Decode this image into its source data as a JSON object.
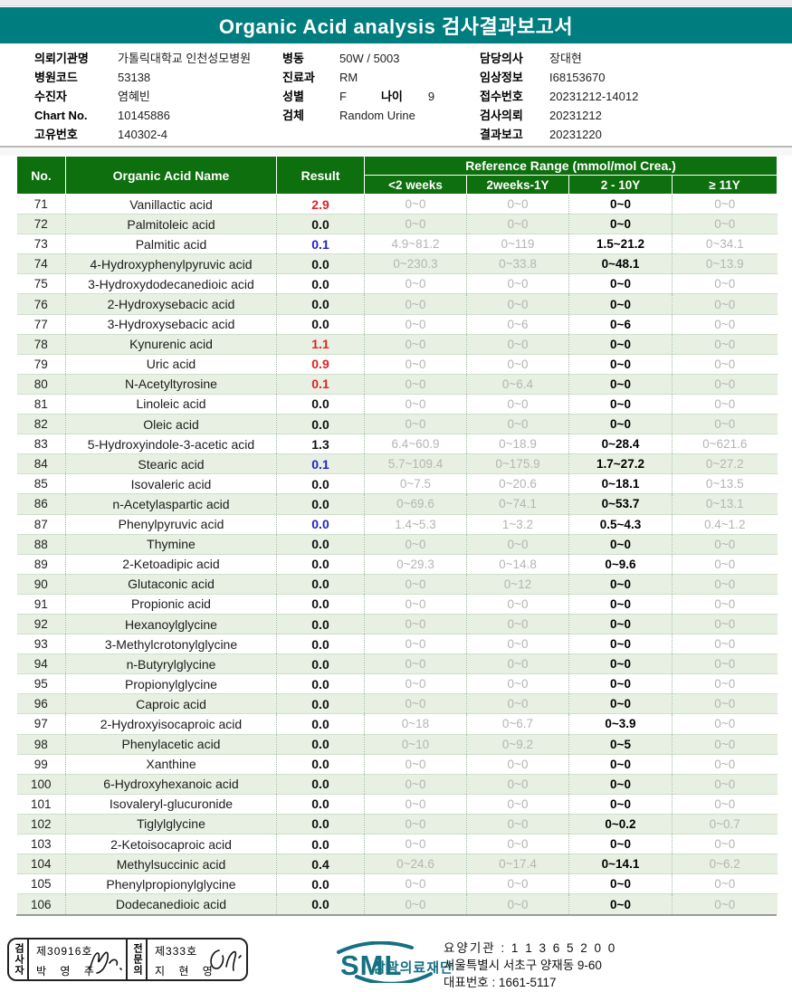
{
  "banner": {
    "title": "Organic Acid analysis 검사결과보고서"
  },
  "colors": {
    "banner_teal": "#007d7e",
    "table_header_green": "#0e6f0e",
    "row_stripe_green": "#e7f0e3",
    "result_high_red": "#e12222",
    "result_low_blue": "#2222cc",
    "reference_gray": "#b3b6b2",
    "logo_teal": "#157082"
  },
  "patient_info": {
    "col1": [
      {
        "label": "의뢰기관명",
        "value": "가톨릭대학교 인천성모병원"
      },
      {
        "label": "병원코드",
        "value": "53138"
      },
      {
        "label": "수진자",
        "value": "염혜빈"
      },
      {
        "label": "Chart No.",
        "value": "10145886"
      },
      {
        "label": "고유번호",
        "value": "140302-4"
      }
    ],
    "col2": [
      {
        "label": "병동",
        "value": "50W / 5003"
      },
      {
        "label": "진료과",
        "value": "RM"
      },
      {
        "label": "성별",
        "value": "F",
        "label2": "나이",
        "value2": "9"
      },
      {
        "label": "검체",
        "value": "Random Urine"
      }
    ],
    "col3": [
      {
        "label": "담당의사",
        "value": "장대현"
      },
      {
        "label": "임상정보",
        "value": "I68153670"
      },
      {
        "label": "접수번호",
        "value": "20231212-14012"
      },
      {
        "label": "검사의뢰",
        "value": "20231212"
      },
      {
        "label": "결과보고",
        "value": "20231220"
      }
    ]
  },
  "table": {
    "header": {
      "no": "No.",
      "name": "Organic Acid Name",
      "result": "Result",
      "reference_group": "Reference Range (mmol/mol Crea.)",
      "age_columns": [
        "<2 weeks",
        "2weeks-1Y",
        "2 - 10Y",
        "≥ 11Y"
      ]
    },
    "rows": [
      {
        "no": "71",
        "name": "Vanillactic acid",
        "result": "2.9",
        "flag": "red",
        "ranges": [
          "0~0",
          "0~0",
          "0~0",
          "0~0"
        ]
      },
      {
        "no": "72",
        "name": "Palmitoleic acid",
        "result": "0.0",
        "flag": "",
        "ranges": [
          "0~0",
          "0~0",
          "0~0",
          "0~0"
        ]
      },
      {
        "no": "73",
        "name": "Palmitic acid",
        "result": "0.1",
        "flag": "blue",
        "ranges": [
          "4.9~81.2",
          "0~119",
          "1.5~21.2",
          "0~34.1"
        ]
      },
      {
        "no": "74",
        "name": "4-Hydroxyphenylpyruvic acid",
        "result": "0.0",
        "flag": "",
        "ranges": [
          "0~230.3",
          "0~33.8",
          "0~48.1",
          "0~13.9"
        ]
      },
      {
        "no": "75",
        "name": "3-Hydroxydodecanedioic acid",
        "result": "0.0",
        "flag": "",
        "ranges": [
          "0~0",
          "0~0",
          "0~0",
          "0~0"
        ]
      },
      {
        "no": "76",
        "name": "2-Hydroxysebacic acid",
        "result": "0.0",
        "flag": "",
        "ranges": [
          "0~0",
          "0~0",
          "0~0",
          "0~0"
        ]
      },
      {
        "no": "77",
        "name": "3-Hydroxysebacic acid",
        "result": "0.0",
        "flag": "",
        "ranges": [
          "0~0",
          "0~6",
          "0~6",
          "0~0"
        ]
      },
      {
        "no": "78",
        "name": "Kynurenic acid",
        "result": "1.1",
        "flag": "red",
        "ranges": [
          "0~0",
          "0~0",
          "0~0",
          "0~0"
        ]
      },
      {
        "no": "79",
        "name": "Uric acid",
        "result": "0.9",
        "flag": "red",
        "ranges": [
          "0~0",
          "0~0",
          "0~0",
          "0~0"
        ]
      },
      {
        "no": "80",
        "name": "N-Acetyltyrosine",
        "result": "0.1",
        "flag": "red",
        "ranges": [
          "0~0",
          "0~6.4",
          "0~0",
          "0~0"
        ]
      },
      {
        "no": "81",
        "name": "Linoleic acid",
        "result": "0.0",
        "flag": "",
        "ranges": [
          "0~0",
          "0~0",
          "0~0",
          "0~0"
        ]
      },
      {
        "no": "82",
        "name": "Oleic acid",
        "result": "0.0",
        "flag": "",
        "ranges": [
          "0~0",
          "0~0",
          "0~0",
          "0~0"
        ]
      },
      {
        "no": "83",
        "name": "5-Hydroxyindole-3-acetic acid",
        "result": "1.3",
        "flag": "",
        "ranges": [
          "6.4~60.9",
          "0~18.9",
          "0~28.4",
          "0~621.6"
        ]
      },
      {
        "no": "84",
        "name": "Stearic acid",
        "result": "0.1",
        "flag": "blue",
        "ranges": [
          "5.7~109.4",
          "0~175.9",
          "1.7~27.2",
          "0~27.2"
        ]
      },
      {
        "no": "85",
        "name": "Isovaleric acid",
        "result": "0.0",
        "flag": "",
        "ranges": [
          "0~7.5",
          "0~20.6",
          "0~18.1",
          "0~13.5"
        ]
      },
      {
        "no": "86",
        "name": "n-Acetylaspartic acid",
        "result": "0.0",
        "flag": "",
        "ranges": [
          "0~69.6",
          "0~74.1",
          "0~53.7",
          "0~13.1"
        ]
      },
      {
        "no": "87",
        "name": "Phenylpyruvic acid",
        "result": "0.0",
        "flag": "blue",
        "ranges": [
          "1.4~5.3",
          "1~3.2",
          "0.5~4.3",
          "0.4~1.2"
        ]
      },
      {
        "no": "88",
        "name": "Thymine",
        "result": "0.0",
        "flag": "",
        "ranges": [
          "0~0",
          "0~0",
          "0~0",
          "0~0"
        ]
      },
      {
        "no": "89",
        "name": "2-Ketoadipic acid",
        "result": "0.0",
        "flag": "",
        "ranges": [
          "0~29.3",
          "0~14.8",
          "0~9.6",
          "0~0"
        ]
      },
      {
        "no": "90",
        "name": "Glutaconic acid",
        "result": "0.0",
        "flag": "",
        "ranges": [
          "0~0",
          "0~12",
          "0~0",
          "0~0"
        ]
      },
      {
        "no": "91",
        "name": "Propionic acid",
        "result": "0.0",
        "flag": "",
        "ranges": [
          "0~0",
          "0~0",
          "0~0",
          "0~0"
        ]
      },
      {
        "no": "92",
        "name": "Hexanoylglycine",
        "result": "0.0",
        "flag": "",
        "ranges": [
          "0~0",
          "0~0",
          "0~0",
          "0~0"
        ]
      },
      {
        "no": "93",
        "name": "3-Methylcrotonylglycine",
        "result": "0.0",
        "flag": "",
        "ranges": [
          "0~0",
          "0~0",
          "0~0",
          "0~0"
        ]
      },
      {
        "no": "94",
        "name": "n-Butyrylglycine",
        "result": "0.0",
        "flag": "",
        "ranges": [
          "0~0",
          "0~0",
          "0~0",
          "0~0"
        ]
      },
      {
        "no": "95",
        "name": "Propionylglycine",
        "result": "0.0",
        "flag": "",
        "ranges": [
          "0~0",
          "0~0",
          "0~0",
          "0~0"
        ]
      },
      {
        "no": "96",
        "name": "Caproic acid",
        "result": "0.0",
        "flag": "",
        "ranges": [
          "0~0",
          "0~0",
          "0~0",
          "0~0"
        ]
      },
      {
        "no": "97",
        "name": "2-Hydroxyisocaproic acid",
        "result": "0.0",
        "flag": "",
        "ranges": [
          "0~18",
          "0~6.7",
          "0~3.9",
          "0~0"
        ]
      },
      {
        "no": "98",
        "name": "Phenylacetic acid",
        "result": "0.0",
        "flag": "",
        "ranges": [
          "0~10",
          "0~9.2",
          "0~5",
          "0~0"
        ]
      },
      {
        "no": "99",
        "name": "Xanthine",
        "result": "0.0",
        "flag": "",
        "ranges": [
          "0~0",
          "0~0",
          "0~0",
          "0~0"
        ]
      },
      {
        "no": "100",
        "name": "6-Hydroxyhexanoic acid",
        "result": "0.0",
        "flag": "",
        "ranges": [
          "0~0",
          "0~0",
          "0~0",
          "0~0"
        ]
      },
      {
        "no": "101",
        "name": "Isovaleryl-glucuronide",
        "result": "0.0",
        "flag": "",
        "ranges": [
          "0~0",
          "0~0",
          "0~0",
          "0~0"
        ]
      },
      {
        "no": "102",
        "name": "Tiglylglycine",
        "result": "0.0",
        "flag": "",
        "ranges": [
          "0~0",
          "0~0",
          "0~0.2",
          "0~0.7"
        ]
      },
      {
        "no": "103",
        "name": "2-Ketoisocaproic acid",
        "result": "0.0",
        "flag": "",
        "ranges": [
          "0~0",
          "0~0",
          "0~0",
          "0~0"
        ]
      },
      {
        "no": "104",
        "name": "Methylsuccinic acid",
        "result": "0.4",
        "flag": "",
        "ranges": [
          "0~24.6",
          "0~17.4",
          "0~14.1",
          "0~6.2"
        ]
      },
      {
        "no": "105",
        "name": "Phenylpropionylglycine",
        "result": "0.0",
        "flag": "",
        "ranges": [
          "0~0",
          "0~0",
          "0~0",
          "0~0"
        ]
      },
      {
        "no": "106",
        "name": "Dodecanedioic acid",
        "result": "0.0",
        "flag": "",
        "ranges": [
          "0~0",
          "0~0",
          "0~0",
          "0~0"
        ]
      }
    ]
  },
  "footer": {
    "stamps": {
      "tester_role": "검사자",
      "tester_cert": "제30916호",
      "tester_name": "박 영 주",
      "specialist_role": "전문의",
      "specialist_cert": "제333호",
      "specialist_name": "지 현 영"
    },
    "logo_text": "SML",
    "org_name": "삼광의료재단",
    "org_lines": {
      "line1": "요양기관 : 1 1 3 6 5 2 0 0",
      "line2": "서울특별시 서초구 양재동 9-60",
      "line3": "대표번호 : 1661-5117"
    }
  }
}
